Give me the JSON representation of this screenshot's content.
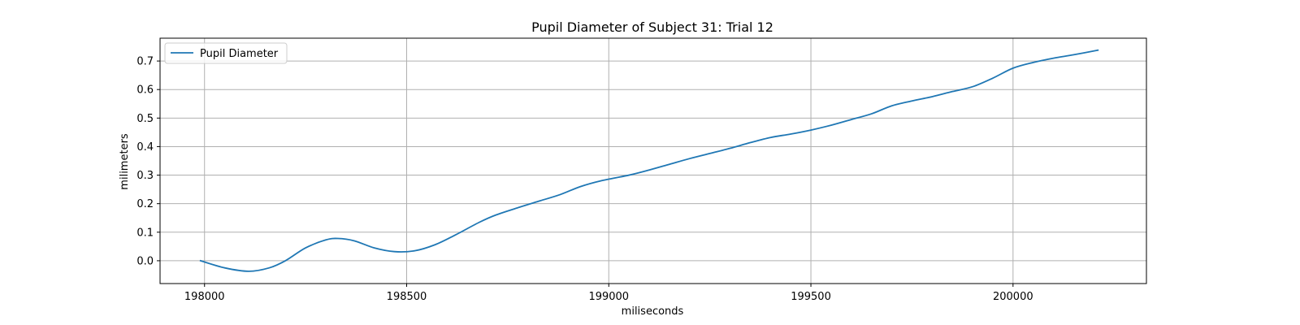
{
  "chart_data": {
    "type": "line",
    "title": "Pupil Diameter of Subject 31: Trial 12",
    "xlabel": "miliseconds",
    "ylabel": "milimeters",
    "xlim": [
      197890,
      200330
    ],
    "ylim": [
      -0.08,
      0.78
    ],
    "xticks": [
      198000,
      198500,
      199000,
      199500,
      200000
    ],
    "yticks": [
      0.0,
      0.1,
      0.2,
      0.3,
      0.4,
      0.5,
      0.6,
      0.7
    ],
    "ytick_labels": [
      "0.0",
      "0.1",
      "0.2",
      "0.3",
      "0.4",
      "0.5",
      "0.6",
      "0.7"
    ],
    "grid": true,
    "legend_position": "upper-left",
    "colors": {
      "line": "#1f77b4",
      "grid": "#b0b0b0",
      "axes": "#000000"
    },
    "series": [
      {
        "name": "Pupil Diameter",
        "x": [
          197990,
          198050,
          198110,
          198160,
          198200,
          198250,
          198300,
          198330,
          198370,
          198420,
          198470,
          198520,
          198570,
          198620,
          198680,
          198720,
          198780,
          198830,
          198880,
          198930,
          198980,
          199050,
          199100,
          199150,
          199200,
          199250,
          199300,
          199350,
          199400,
          199450,
          199500,
          199550,
          199600,
          199650,
          199700,
          199750,
          199800,
          199850,
          199900,
          199950,
          200000,
          200050,
          200100,
          200150,
          200210
        ],
        "y": [
          0.0,
          -0.025,
          -0.037,
          -0.025,
          0.0,
          0.045,
          0.073,
          0.078,
          0.07,
          0.045,
          0.032,
          0.035,
          0.056,
          0.09,
          0.135,
          0.16,
          0.188,
          0.21,
          0.232,
          0.26,
          0.28,
          0.3,
          0.318,
          0.338,
          0.358,
          0.376,
          0.394,
          0.414,
          0.432,
          0.444,
          0.458,
          0.475,
          0.495,
          0.515,
          0.543,
          0.56,
          0.575,
          0.593,
          0.61,
          0.64,
          0.675,
          0.695,
          0.71,
          0.722,
          0.738
        ]
      }
    ]
  }
}
